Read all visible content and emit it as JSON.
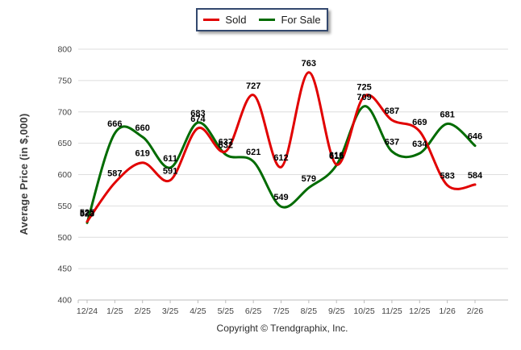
{
  "legend": {
    "items": [
      {
        "label": "Sold",
        "color": "#e10000"
      },
      {
        "label": "For Sale",
        "color": "#006b00"
      }
    ]
  },
  "chart_data": {
    "type": "line",
    "title": "",
    "ylabel": "Average Price (in $,000)",
    "xlabel": "",
    "ylim": [
      400,
      800
    ],
    "yticks": [
      400,
      450,
      500,
      550,
      600,
      650,
      700,
      750,
      800
    ],
    "grid": true,
    "smooth": true,
    "legend_position": "top-center",
    "x": [
      "12/24",
      "1/25",
      "2/25",
      "3/25",
      "4/25",
      "5/25",
      "6/25",
      "7/25",
      "8/25",
      "9/25",
      "10/25",
      "11/25",
      "12/25",
      "1/26",
      "2/26"
    ],
    "series": [
      {
        "name": "Sold",
        "color": "#e10000",
        "values": [
          525,
          587,
          619,
          591,
          674,
          637,
          727,
          612,
          763,
          616,
          725,
          687,
          669,
          583,
          584
        ]
      },
      {
        "name": "For Sale",
        "color": "#006b00",
        "values": [
          523,
          666,
          660,
          611,
          683,
          632,
          621,
          549,
          579,
          615,
          709,
          637,
          634,
          681,
          646
        ]
      }
    ]
  },
  "footer": {
    "copyright": "Copyright © Trendgraphix, Inc."
  },
  "colors": {
    "grid": "#dedede",
    "axis": "#bcbcbc",
    "tick_text": "#444444",
    "data_label": "#000000",
    "legend_border": "#33486e"
  }
}
